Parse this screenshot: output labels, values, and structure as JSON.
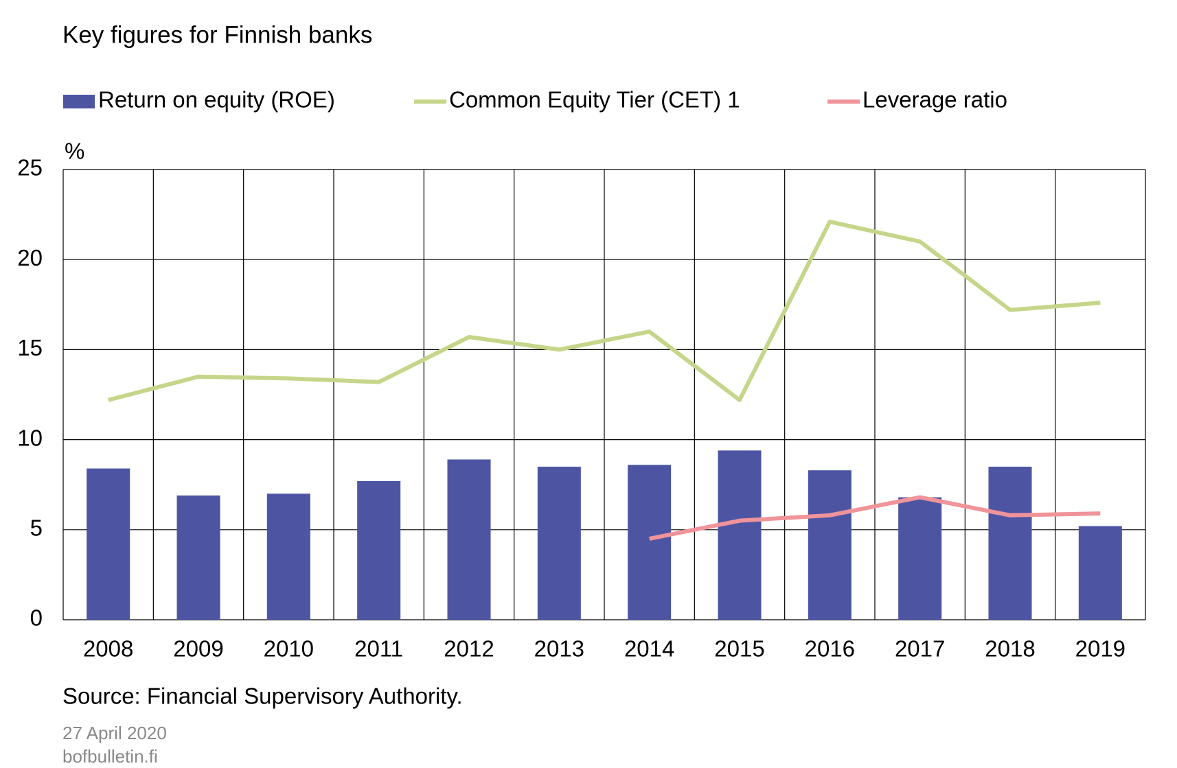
{
  "chart_data": {
    "type": "bar",
    "title": "Key figures for Finnish banks",
    "y_label": "%",
    "categories": [
      "2008",
      "2009",
      "2010",
      "2011",
      "2012",
      "2013",
      "2014",
      "2015",
      "2016",
      "2017",
      "2018",
      "2019"
    ],
    "series": [
      {
        "name": "Return on equity (ROE)",
        "type": "bar",
        "color": "#4d55a3",
        "values": [
          8.4,
          6.9,
          7.0,
          7.7,
          8.9,
          8.5,
          8.6,
          9.4,
          8.3,
          6.8,
          8.5,
          5.2
        ]
      },
      {
        "name": "Common Equity Tier (CET) 1",
        "type": "line",
        "color": "#c5d68a",
        "values": [
          12.2,
          13.5,
          13.4,
          13.2,
          15.7,
          15.0,
          16.0,
          12.2,
          22.1,
          21.0,
          17.2,
          17.6
        ]
      },
      {
        "name": "Leverage ratio",
        "type": "line",
        "color": "#f0949a",
        "values": [
          null,
          null,
          null,
          null,
          null,
          null,
          4.5,
          5.5,
          5.8,
          6.8,
          5.8,
          5.9
        ]
      }
    ],
    "ylim": [
      0,
      25
    ],
    "yticks": [
      0,
      5,
      10,
      15,
      20,
      25
    ],
    "grid": true,
    "source": "Source: Financial Supervisory Authority.",
    "date": "27 April 2020",
    "site": "bofbulletin.fi"
  }
}
